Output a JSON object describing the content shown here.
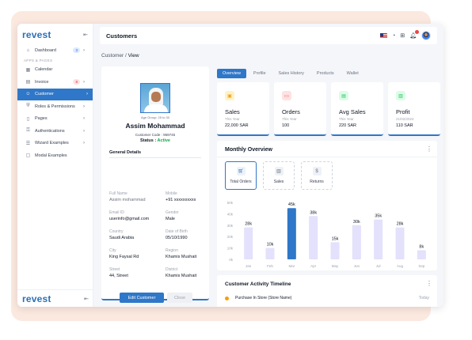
{
  "brand": {
    "logo": "revest"
  },
  "sidebar": {
    "section_label": "APPS & PAGES",
    "items": [
      {
        "label": "Dashboard",
        "icon": "home-icon",
        "badge": "3",
        "chevron": true
      },
      {
        "label": "Calendar",
        "icon": "calendar-icon"
      },
      {
        "label": "Invoice",
        "icon": "invoice-icon",
        "badge": "8",
        "chevron": true
      },
      {
        "label": "Customer",
        "icon": "users-icon",
        "chevron": true,
        "active": true
      },
      {
        "label": "Roles & Permissions",
        "icon": "shield-icon",
        "chevron": true
      },
      {
        "label": "Pages",
        "icon": "file-icon",
        "chevron": true
      },
      {
        "label": "Authentications",
        "icon": "lock-icon",
        "chevron": true
      },
      {
        "label": "Wizard Examples",
        "icon": "wizard-icon",
        "chevron": true
      },
      {
        "label": "Modal Examples",
        "icon": "window-icon"
      }
    ]
  },
  "header": {
    "title": "Customers"
  },
  "breadcrumb": {
    "parent": "Customer",
    "current": "View"
  },
  "customer": {
    "age_group": "Age Group: 25 to 30",
    "name": "Assim Mohammad",
    "code_label": "Customer Code :",
    "code": "959745",
    "status_label": "Status :",
    "status": "Active",
    "details_title": "General Details",
    "fields": [
      {
        "label": "Full Name",
        "value": "Assim mohammad"
      },
      {
        "label": "Mobile",
        "value": "+91 xxxxxxxxxx"
      },
      {
        "label": "Email ID",
        "value": "userinfo@gmail.com"
      },
      {
        "label": "Gender",
        "value": "Male"
      },
      {
        "label": "Country",
        "value": "Saudi Arabia"
      },
      {
        "label": "Date of Birth",
        "value": "05/10/1990"
      },
      {
        "label": "City",
        "value": "King Faysal Rd"
      },
      {
        "label": "Region",
        "value": "Khamis Mushait"
      },
      {
        "label": "Street",
        "value": "44, Street"
      },
      {
        "label": "District",
        "value": "Khamis Mushait"
      }
    ],
    "edit_label": "Edit Customer",
    "close_label": "Close"
  },
  "tabs": [
    "Overview",
    "Profile",
    "Sales History",
    "Products",
    "Wallet"
  ],
  "stats": [
    {
      "title": "Sales",
      "sub": "This Year",
      "value": "22,000 SAR",
      "color": "#f59e0b",
      "bg": "#fef3c7",
      "icon": "box-icon"
    },
    {
      "title": "Orders",
      "sub": "This Year",
      "value": "100",
      "color": "#ef4444",
      "bg": "#fee2e2",
      "icon": "card-icon"
    },
    {
      "title": "Avg Sales",
      "sub": "This Year",
      "value": "220 SAR",
      "color": "#22c55e",
      "bg": "#dcfce7",
      "icon": "wallet-icon"
    },
    {
      "title": "Profit",
      "sub": "21/02/2024",
      "value": "110 SAR",
      "color": "#22c55e",
      "bg": "#dcfce7",
      "icon": "chart-icon"
    }
  ],
  "overview": {
    "title": "Monthly Overview",
    "buttons": [
      {
        "label": "Total Orders",
        "icon": "cart-icon"
      },
      {
        "label": "Sales",
        "icon": "bar-chart-icon"
      },
      {
        "label": "Returns",
        "icon": "dollar-icon"
      }
    ]
  },
  "chart_data": {
    "type": "bar",
    "categories": [
      "Jan",
      "Feb",
      "Mar",
      "Apr",
      "May",
      "Jun",
      "Jul",
      "Aug",
      "Sep"
    ],
    "values": [
      28,
      10,
      45,
      38,
      15,
      30,
      35,
      28,
      8
    ],
    "data_labels": [
      "28k",
      "10k",
      "45k",
      "38k",
      "15k",
      "30k",
      "35k",
      "28k",
      "8k"
    ],
    "highlight_index": 2,
    "yticks": [
      "0k",
      "10k",
      "20k",
      "30k",
      "40k",
      "50k"
    ],
    "ylim": [
      0,
      50
    ],
    "grid": false,
    "colors": {
      "bar": "#e3e1fb",
      "highlight": "#2f77c8"
    }
  },
  "timeline": {
    "title": "Customer Activity Timeline",
    "items": [
      {
        "text": "Purchase In Store (Store Name)",
        "when": "Today"
      }
    ]
  }
}
